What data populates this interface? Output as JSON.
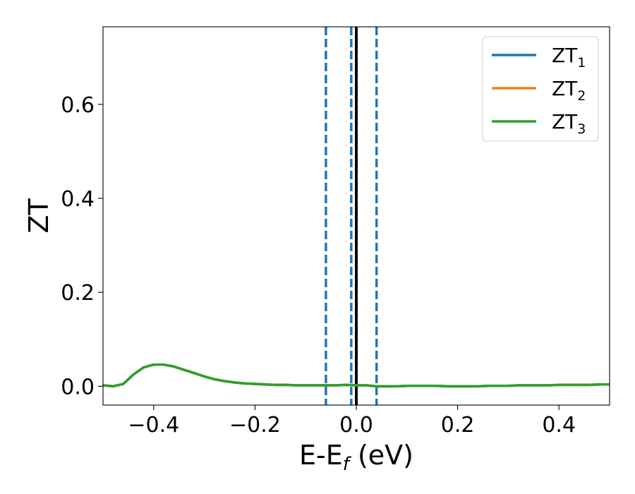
{
  "chart_data": {
    "type": "line",
    "xlabel": "E-E",
    "xlabel_sub": "f",
    "xlabel_unit": " (eV)",
    "ylabel": "ZT",
    "xlim": [
      -0.5,
      0.5
    ],
    "ylim": [
      -0.04,
      0.765
    ],
    "xticks": [
      -0.4,
      -0.2,
      0.0,
      0.2,
      0.4
    ],
    "xtick_labels": [
      "−0.4",
      "−0.2",
      "0.0",
      "0.2",
      "0.4"
    ],
    "yticks": [
      0.0,
      0.2,
      0.4,
      0.6
    ],
    "ytick_labels": [
      "0.0",
      "0.2",
      "0.4",
      "0.6"
    ],
    "grid": false,
    "legend_position": "top-right",
    "series": [
      {
        "name": "ZT",
        "name_sub": "1",
        "color": "#1f77b4",
        "x": [
          -0.5,
          -0.48,
          -0.46,
          -0.44,
          -0.42,
          -0.4,
          -0.38,
          -0.36,
          -0.34,
          -0.32,
          -0.3,
          -0.28,
          -0.26,
          -0.24,
          -0.22,
          -0.2,
          -0.18,
          -0.16,
          -0.14,
          -0.12,
          -0.1,
          -0.08,
          -0.06,
          -0.04,
          -0.02,
          0.0,
          0.02,
          0.04,
          0.06,
          0.08,
          0.1,
          0.12,
          0.14,
          0.16,
          0.18,
          0.2,
          0.22,
          0.24,
          0.26,
          0.28,
          0.3,
          0.32,
          0.34,
          0.36,
          0.38,
          0.4,
          0.42,
          0.44,
          0.46,
          0.48,
          0.5
        ],
        "y": [
          0.002,
          0.0,
          0.005,
          0.025,
          0.04,
          0.046,
          0.046,
          0.042,
          0.035,
          0.028,
          0.021,
          0.015,
          0.011,
          0.008,
          0.006,
          0.005,
          0.004,
          0.003,
          0.003,
          0.002,
          0.002,
          0.002,
          0.002,
          0.002,
          0.003,
          0.002,
          0.002,
          0.0,
          0.0,
          0.0,
          0.001,
          0.001,
          0.001,
          0.001,
          0.0,
          0.0,
          0.0,
          0.0,
          0.001,
          0.001,
          0.001,
          0.002,
          0.002,
          0.002,
          0.002,
          0.003,
          0.003,
          0.003,
          0.003,
          0.004,
          0.004
        ]
      },
      {
        "name": "ZT",
        "name_sub": "2",
        "color": "#ff7f0e",
        "x": [
          -0.5,
          -0.48,
          -0.46,
          -0.44,
          -0.42,
          -0.4,
          -0.38,
          -0.36,
          -0.34,
          -0.32,
          -0.3,
          -0.28,
          -0.26,
          -0.24,
          -0.22,
          -0.2,
          -0.18,
          -0.16,
          -0.14,
          -0.12,
          -0.1,
          -0.08,
          -0.06,
          -0.04,
          -0.02,
          0.0,
          0.02,
          0.04,
          0.06,
          0.08,
          0.1,
          0.12,
          0.14,
          0.16,
          0.18,
          0.2,
          0.22,
          0.24,
          0.26,
          0.28,
          0.3,
          0.32,
          0.34,
          0.36,
          0.38,
          0.4,
          0.42,
          0.44,
          0.46,
          0.48,
          0.5
        ],
        "y": [
          0.002,
          0.0,
          0.005,
          0.025,
          0.04,
          0.046,
          0.046,
          0.042,
          0.035,
          0.028,
          0.021,
          0.015,
          0.011,
          0.008,
          0.006,
          0.005,
          0.004,
          0.003,
          0.003,
          0.002,
          0.002,
          0.002,
          0.002,
          0.002,
          0.003,
          0.002,
          0.002,
          0.0,
          0.0,
          0.0,
          0.001,
          0.001,
          0.001,
          0.001,
          0.0,
          0.0,
          0.0,
          0.0,
          0.001,
          0.001,
          0.001,
          0.002,
          0.002,
          0.002,
          0.002,
          0.003,
          0.003,
          0.003,
          0.003,
          0.004,
          0.004
        ]
      },
      {
        "name": "ZT",
        "name_sub": "3",
        "color": "#2ca02c",
        "x": [
          -0.5,
          -0.48,
          -0.46,
          -0.44,
          -0.42,
          -0.4,
          -0.38,
          -0.36,
          -0.34,
          -0.32,
          -0.3,
          -0.28,
          -0.26,
          -0.24,
          -0.22,
          -0.2,
          -0.18,
          -0.16,
          -0.14,
          -0.12,
          -0.1,
          -0.08,
          -0.06,
          -0.04,
          -0.02,
          0.0,
          0.02,
          0.04,
          0.06,
          0.08,
          0.1,
          0.12,
          0.14,
          0.16,
          0.18,
          0.2,
          0.22,
          0.24,
          0.26,
          0.28,
          0.3,
          0.32,
          0.34,
          0.36,
          0.38,
          0.4,
          0.42,
          0.44,
          0.46,
          0.48,
          0.5
        ],
        "y": [
          0.002,
          0.0,
          0.005,
          0.025,
          0.04,
          0.046,
          0.046,
          0.042,
          0.035,
          0.028,
          0.021,
          0.015,
          0.011,
          0.008,
          0.006,
          0.005,
          0.004,
          0.003,
          0.003,
          0.002,
          0.002,
          0.002,
          0.002,
          0.002,
          0.003,
          0.002,
          0.002,
          0.0,
          0.0,
          0.0,
          0.001,
          0.001,
          0.001,
          0.001,
          0.0,
          0.0,
          0.0,
          0.0,
          0.001,
          0.001,
          0.001,
          0.002,
          0.002,
          0.002,
          0.002,
          0.003,
          0.003,
          0.003,
          0.003,
          0.004,
          0.004
        ]
      }
    ],
    "vlines": [
      {
        "x": -0.06,
        "style": "dashed",
        "color": "#1f77b4"
      },
      {
        "x": -0.01,
        "style": "dashed",
        "color": "#1f77b4"
      },
      {
        "x": 0.04,
        "style": "dashed",
        "color": "#1f77b4"
      },
      {
        "x": 0.0,
        "style": "solid",
        "color": "#000000"
      }
    ]
  }
}
